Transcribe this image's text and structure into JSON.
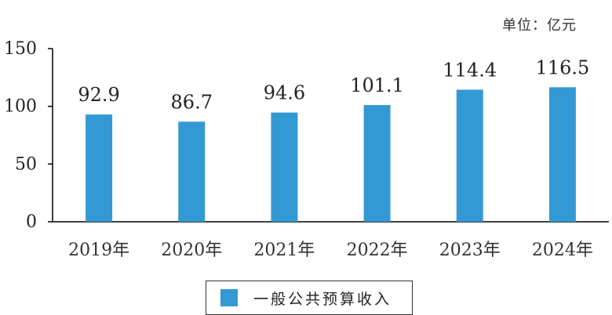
{
  "unit_label": "单位：亿元",
  "chart_data": {
    "type": "bar",
    "categories": [
      "2019年",
      "2020年",
      "2021年",
      "2022年",
      "2023年",
      "2024年"
    ],
    "series": [
      {
        "name": "一般公共预算收入",
        "values": [
          92.9,
          86.7,
          94.6,
          101.1,
          114.4,
          116.5
        ]
      }
    ],
    "data_labels": [
      "92.9",
      "86.7",
      "94.6",
      "101.1",
      "114.4",
      "116.5"
    ],
    "ylim": [
      0,
      150
    ],
    "yticks": [
      0,
      50,
      100,
      150
    ],
    "grid": false,
    "legend_position": "bottom",
    "bar_color": "#3399d4",
    "xlabel": "",
    "ylabel": ""
  }
}
